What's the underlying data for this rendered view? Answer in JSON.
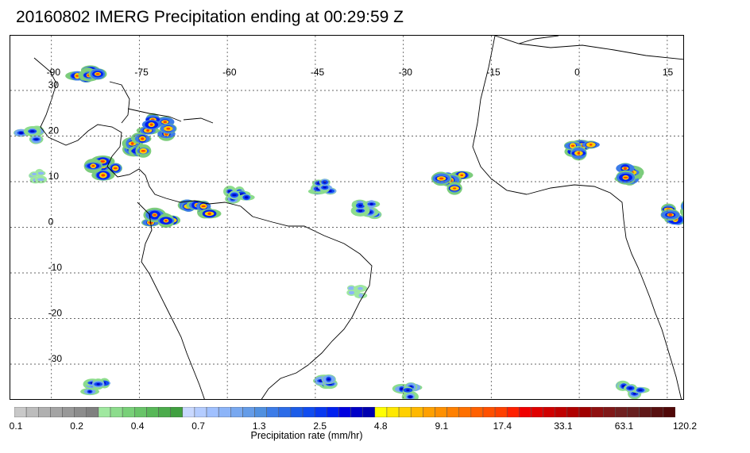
{
  "title": "20160802 IMERG Precipitation ending at 00:29:59 Z",
  "map": {
    "lon_min": -97,
    "lon_max": 18,
    "lat_min": -38,
    "lat_max": 42,
    "lon_labels": [
      "-90",
      "-75",
      "-60",
      "-45",
      "-30",
      "-15",
      "0",
      "15"
    ],
    "lon_values": [
      -90,
      -75,
      -60,
      -45,
      -30,
      -15,
      0,
      15
    ],
    "lat_labels": [
      "30",
      "20",
      "10",
      "0",
      "-10",
      "-20",
      "-30"
    ],
    "lat_values": [
      30,
      20,
      10,
      0,
      -10,
      -20,
      -30
    ],
    "grid": "dotted"
  },
  "colorbar": {
    "title": "Precipitation rate (mm/hr)",
    "tick_labels": [
      "0.1",
      "0.2",
      "0.4",
      "0.7",
      "1.3",
      "2.5",
      "4.8",
      "9.1",
      "17.4",
      "33.1",
      "63.1",
      "120.2"
    ],
    "colors": [
      "#c8c8c8",
      "#bcbcbc",
      "#b0b0b0",
      "#a4a4a4",
      "#989898",
      "#8c8c8c",
      "#808080",
      "#a0e8a0",
      "#8cdc8c",
      "#78d078",
      "#68c468",
      "#58b858",
      "#4cac4c",
      "#40a040",
      "#c8d8ff",
      "#b4ccff",
      "#a0c0ff",
      "#8cb4f8",
      "#78a8f0",
      "#649ce8",
      "#5090e0",
      "#3c7ce8",
      "#2c6ce8",
      "#1c5ce8",
      "#104cf0",
      "#0838f0",
      "#0020f0",
      "#0000e0",
      "#0000c8",
      "#0000b0",
      "#ffff00",
      "#ffe800",
      "#ffd000",
      "#ffb800",
      "#ffa000",
      "#ff9000",
      "#ff8000",
      "#ff7000",
      "#ff6000",
      "#ff5000",
      "#ff4000",
      "#ff2000",
      "#f00000",
      "#e00000",
      "#d00000",
      "#c00000",
      "#b00000",
      "#a00000",
      "#901010",
      "#801818",
      "#702020",
      "#682020",
      "#601818",
      "#581010",
      "#500808"
    ]
  },
  "precip_regions": [
    {
      "lon": -84,
      "lat": 33,
      "level": "heavy"
    },
    {
      "lon": -75,
      "lat": 18,
      "level": "heavy"
    },
    {
      "lon": -81,
      "lat": 13,
      "level": "heavy"
    },
    {
      "lon": -72,
      "lat": 22,
      "level": "heavy"
    },
    {
      "lon": -71,
      "lat": 1,
      "level": "heavy"
    },
    {
      "lon": -65,
      "lat": 4,
      "level": "heavy"
    },
    {
      "lon": -58,
      "lat": 7,
      "level": "moderate"
    },
    {
      "lon": -44,
      "lat": 9,
      "level": "moderate"
    },
    {
      "lon": -36,
      "lat": 4,
      "level": "moderate"
    },
    {
      "lon": -22,
      "lat": 10,
      "level": "heavy"
    },
    {
      "lon": 0,
      "lat": 17,
      "level": "heavy"
    },
    {
      "lon": 8,
      "lat": 12,
      "level": "heavy"
    },
    {
      "lon": 17,
      "lat": 3,
      "level": "heavy"
    },
    {
      "lon": -94,
      "lat": 20,
      "level": "moderate"
    },
    {
      "lon": -92,
      "lat": 11,
      "level": "light"
    },
    {
      "lon": -44,
      "lat": -34,
      "level": "moderate"
    },
    {
      "lon": -29,
      "lat": -36,
      "level": "moderate"
    },
    {
      "lon": -82,
      "lat": -35,
      "level": "moderate"
    },
    {
      "lon": 9,
      "lat": -36,
      "level": "moderate"
    },
    {
      "lon": -38,
      "lat": -14,
      "level": "light"
    }
  ]
}
